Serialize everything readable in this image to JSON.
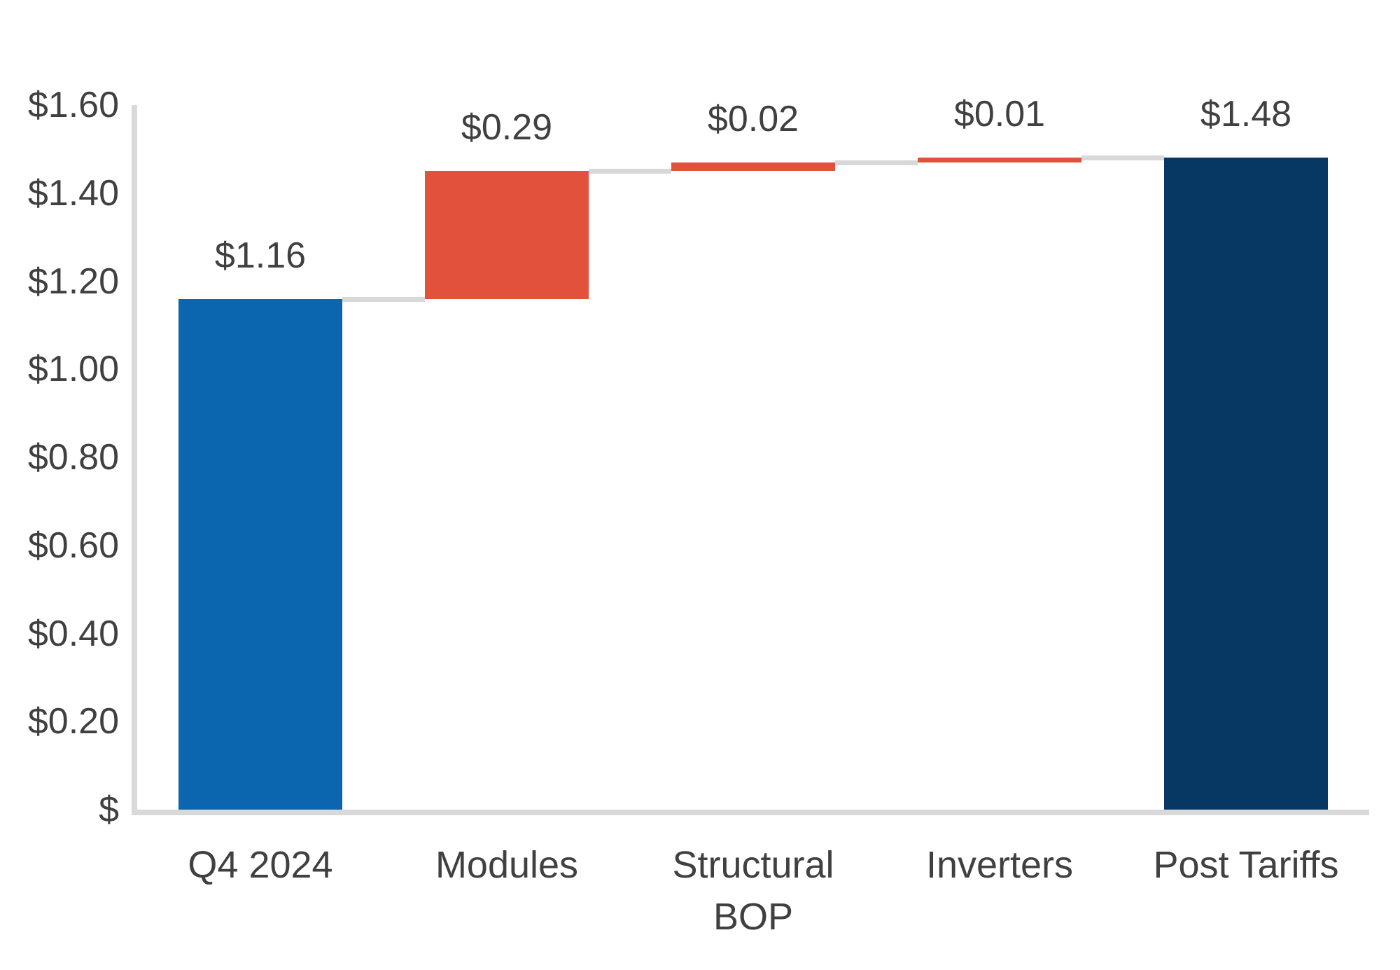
{
  "chart_data": {
    "type": "waterfall",
    "title": "",
    "categories": [
      "Q4 2024",
      "Modules",
      "Structural BOP",
      "Inverters",
      "Post Tariffs"
    ],
    "values": [
      1.16,
      0.29,
      0.02,
      0.01,
      1.48
    ],
    "bar_kinds": [
      "total",
      "delta",
      "delta",
      "delta",
      "total"
    ],
    "value_labels": [
      "$1.16",
      "$0.29",
      "$0.02",
      "$0.01",
      "$1.48"
    ],
    "bar_colors": [
      "#0B66AF",
      "#E1513C",
      "#E1513C",
      "#E1513C",
      "#073864"
    ],
    "y_axis": {
      "min": 0,
      "max": 1.6,
      "tick_step": 0.2,
      "tick_labels": [
        "$",
        "$0.20",
        "$0.40",
        "$0.60",
        "$0.80",
        "$1.00",
        "$1.20",
        "$1.40",
        "$1.60"
      ]
    },
    "gridlines": false,
    "legend": false,
    "colors": {
      "connector": "#D8D8D8",
      "axis": "#D9D9D9",
      "text": "#404040",
      "background": "#FFFFFF"
    }
  }
}
